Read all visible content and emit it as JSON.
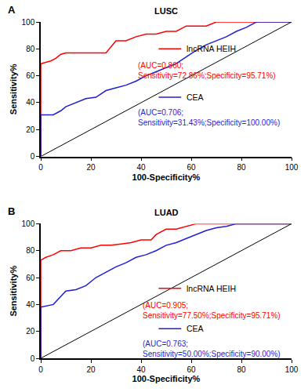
{
  "chart_data": [
    {
      "type": "line",
      "panel_label": "A",
      "title": "LUSC",
      "x_label": "100-Specificity%",
      "y_label": "Sensitivity%",
      "xlim": [
        0,
        100
      ],
      "ylim": [
        0,
        100
      ],
      "xticks": [
        0,
        20,
        40,
        60,
        80,
        100
      ],
      "yticks": [
        0,
        20,
        40,
        60,
        80,
        100
      ],
      "grid": false,
      "series": [
        {
          "name": "lncRNA HEIH",
          "color": "#ff0000",
          "x": [
            0,
            0,
            2,
            4,
            6,
            8,
            10,
            14,
            18,
            22,
            26,
            30,
            34,
            38,
            42,
            46,
            50,
            54,
            58,
            62,
            66,
            70,
            80,
            90,
            100
          ],
          "values": [
            0,
            69,
            70,
            71,
            73,
            76,
            77,
            77,
            77,
            77,
            77,
            86,
            86,
            89,
            91,
            91,
            93,
            93,
            97,
            97,
            97,
            100,
            100,
            100,
            100
          ]
        },
        {
          "name": "CEA",
          "color": "#1f1fd0",
          "x": [
            0,
            0,
            5,
            8,
            10,
            14,
            18,
            22,
            26,
            30,
            34,
            38,
            42,
            46,
            50,
            54,
            58,
            62,
            66,
            70,
            74,
            78,
            82,
            86,
            100
          ],
          "values": [
            0,
            31,
            31,
            34,
            37,
            40,
            43,
            44,
            49,
            51,
            53,
            56,
            60,
            63,
            66,
            69,
            74,
            79,
            83,
            86,
            89,
            93,
            96,
            100,
            100
          ]
        },
        {
          "color": "#000000",
          "x": [
            0,
            100
          ],
          "values": [
            0,
            100
          ]
        }
      ],
      "annotations": [
        {
          "text": "(AUC=0.860;\nSensitivity=72.86%;Specificity=95.71%)",
          "color": "#ff0000"
        },
        {
          "text": "(AUC=0.706;\nSensitivity=31.43%;Specificity=100.00%)",
          "color": "#1f1fd0"
        }
      ]
    },
    {
      "type": "line",
      "panel_label": "B",
      "title": "LUAD",
      "x_label": "100-Specificity%",
      "y_label": "Sensitivity%",
      "xlim": [
        0,
        100
      ],
      "ylim": [
        0,
        100
      ],
      "xticks": [
        0,
        20,
        40,
        60,
        80,
        100
      ],
      "yticks": [
        0,
        20,
        40,
        60,
        80,
        100
      ],
      "grid": false,
      "series": [
        {
          "name": "lncRNA HEIH",
          "color": "#ff0000",
          "x": [
            0,
            0,
            2,
            5,
            8,
            12,
            16,
            20,
            24,
            28,
            32,
            36,
            40,
            44,
            46,
            50,
            54,
            58,
            62,
            100
          ],
          "values": [
            0,
            73,
            75,
            77,
            80,
            80,
            82,
            82,
            84,
            84,
            85,
            86,
            88,
            88,
            92,
            96,
            96,
            98,
            100,
            100
          ]
        },
        {
          "name": "CEA",
          "color": "#1f1fd0",
          "x": [
            0,
            0,
            5,
            8,
            10,
            14,
            18,
            22,
            26,
            30,
            34,
            38,
            42,
            46,
            50,
            54,
            58,
            62,
            66,
            70,
            74,
            78,
            100
          ],
          "values": [
            0,
            38,
            40,
            46,
            50,
            51,
            54,
            60,
            64,
            68,
            71,
            75,
            77,
            80,
            84,
            86,
            89,
            92,
            95,
            97,
            98,
            100,
            100
          ]
        },
        {
          "color": "#000000",
          "x": [
            0,
            100
          ],
          "values": [
            0,
            100
          ]
        }
      ],
      "annotations": [
        {
          "text": "(AUC=0.905;\nSensitivity=77.50%;Specificity=95.71%)",
          "color": "#ff0000"
        },
        {
          "text": "(AUC=0.763;\nSensitivity=50.00%;Specificity=90.00%)",
          "color": "#1f1fd0"
        }
      ]
    }
  ]
}
